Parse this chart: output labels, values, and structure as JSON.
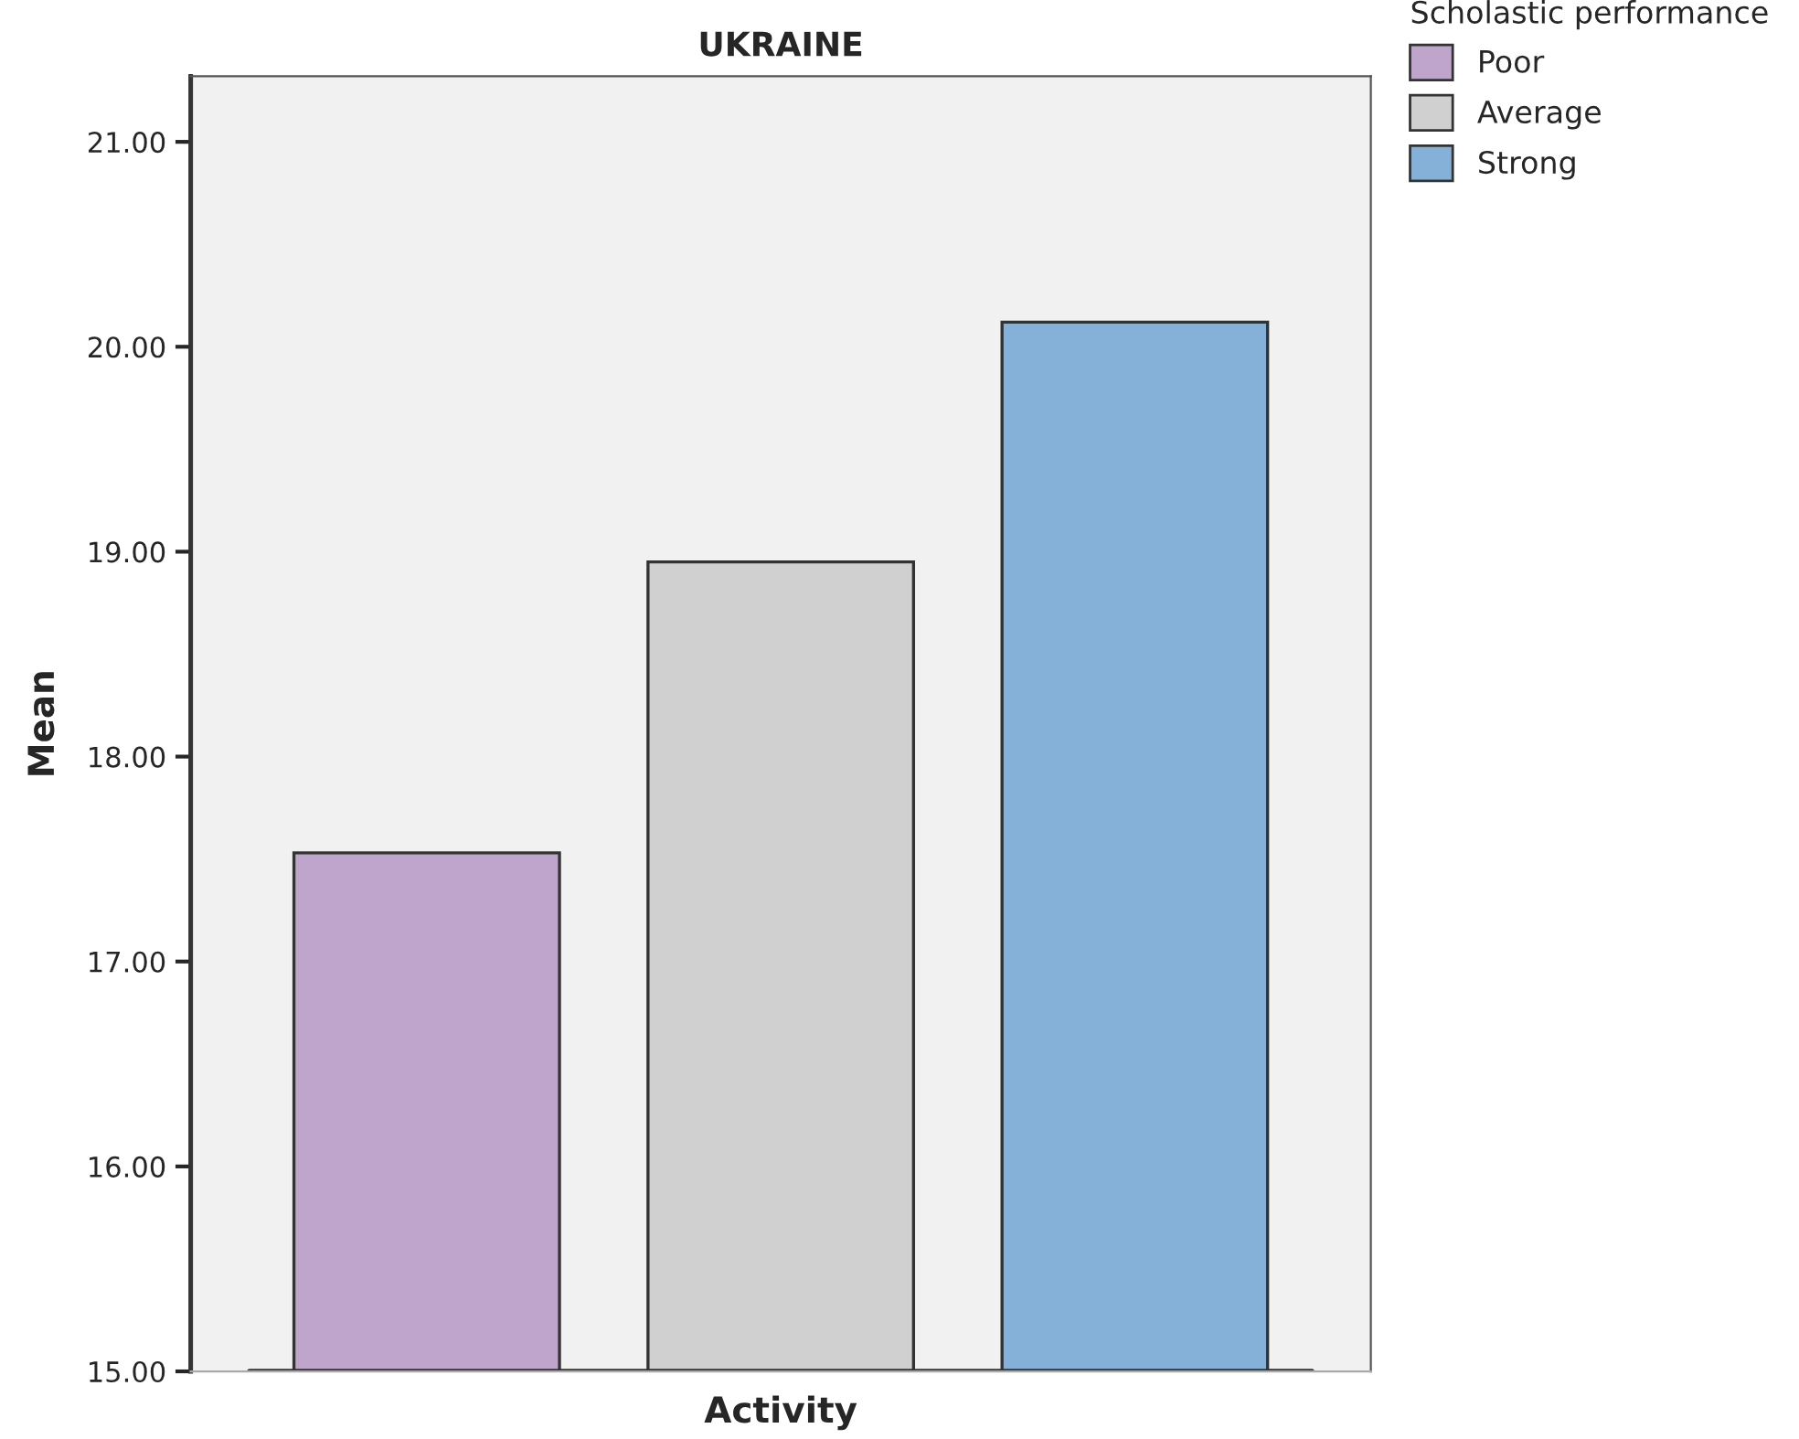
{
  "chart_data": {
    "type": "bar",
    "title": "UKRAINE",
    "xlabel": "Activity",
    "ylabel": "Mean",
    "legend_title": "Scholastic performance",
    "categories": [
      null
    ],
    "series": [
      {
        "name": "Poor",
        "color": "#bfa4cc",
        "values": [
          17.53
        ]
      },
      {
        "name": "Average",
        "color": "#d0d0d0",
        "values": [
          18.95
        ]
      },
      {
        "name": "Strong",
        "color": "#85b0d8",
        "values": [
          20.12
        ]
      }
    ],
    "ylim": [
      15,
      21.32
    ],
    "yticks": [
      {
        "value": 15,
        "label": "15.00"
      },
      {
        "value": 16,
        "label": "16.00"
      },
      {
        "value": 17,
        "label": "17.00"
      },
      {
        "value": 18,
        "label": "18.00"
      },
      {
        "value": 19,
        "label": "19.00"
      },
      {
        "value": 20,
        "label": "20.00"
      },
      {
        "value": 21,
        "label": "21.00"
      }
    ],
    "grid": false,
    "legend": "top right"
  }
}
